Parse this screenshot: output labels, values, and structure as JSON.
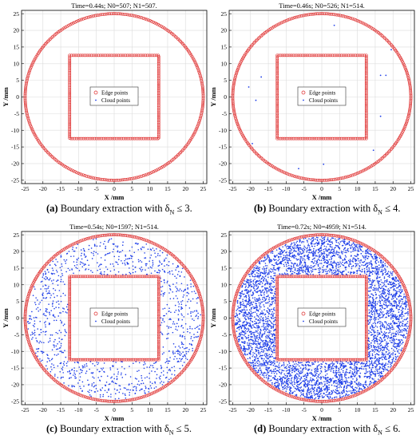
{
  "colors": {
    "edge": "#dd2222",
    "cloud": "#1f3fe8",
    "grid": "#dcdcdc",
    "axis": "#000000"
  },
  "chart_data": [
    {
      "type": "scatter",
      "panel": "a",
      "title": "Time=0.44s; N0=507; N1=507.",
      "xlabel": "X /mm",
      "ylabel": "Y /mm",
      "xlim": [
        -26,
        26
      ],
      "ylim": [
        -26,
        26
      ],
      "xticks": [
        -25,
        -20,
        -15,
        -10,
        -5,
        0,
        5,
        10,
        15,
        20,
        25
      ],
      "yticks": [
        -25,
        -20,
        -15,
        -10,
        -5,
        0,
        5,
        10,
        15,
        20,
        25
      ],
      "grid": true,
      "legend": {
        "position": "center",
        "entries": [
          "Edge points",
          "Cloud points"
        ]
      },
      "series": [
        {
          "name": "Edge points",
          "marker": "circle",
          "shape": "circle boundary R=25 + square boundary half-side 12.5",
          "circle_radius": 25,
          "square_half_side": 12.5,
          "count": 507
        },
        {
          "name": "Cloud points",
          "marker": "dot",
          "count": 0,
          "points": []
        }
      ],
      "caption_label": "(a)",
      "caption_text": " Boundary extraction with δ",
      "caption_sub": "N",
      "caption_rel": " ≤ 3."
    },
    {
      "type": "scatter",
      "panel": "b",
      "title": "Time=0.46s; N0=526; N1=514.",
      "xlabel": "X /mm",
      "ylabel": "Y /mm",
      "xlim": [
        -26,
        26
      ],
      "ylim": [
        -26,
        26
      ],
      "xticks": [
        -25,
        -20,
        -15,
        -10,
        -5,
        0,
        5,
        10,
        15,
        20,
        25
      ],
      "yticks": [
        -25,
        -20,
        -15,
        -10,
        -5,
        0,
        5,
        10,
        15,
        20,
        25
      ],
      "grid": true,
      "legend": {
        "position": "center",
        "entries": [
          "Edge points",
          "Cloud points"
        ]
      },
      "series": [
        {
          "name": "Edge points",
          "marker": "circle",
          "shape": "circle boundary R=25 + square boundary half-side 12.5",
          "circle_radius": 25,
          "square_half_side": 12.5,
          "count": 514
        },
        {
          "name": "Cloud points",
          "marker": "dot",
          "count": 12,
          "points": [
            [
              3.5,
              21.5
            ],
            [
              19.5,
              14.2
            ],
            [
              -20.5,
              3.0
            ],
            [
              -17.0,
              6.0
            ],
            [
              -18.5,
              -1.0
            ],
            [
              16.5,
              6.5
            ],
            [
              18.0,
              6.5
            ],
            [
              16.5,
              -5.8
            ],
            [
              -19.5,
              -14.0
            ],
            [
              14.5,
              -16.0
            ],
            [
              0.5,
              -20.2
            ],
            [
              -6.5,
              -21.5
            ]
          ]
        }
      ],
      "caption_label": "(b)",
      "caption_text": " Boundary extraction with δ",
      "caption_sub": "N",
      "caption_rel": " ≤ 4."
    },
    {
      "type": "scatter",
      "panel": "c",
      "title": "Time=0.54s; N0=1597; N1=514.",
      "xlabel": "X /mm",
      "ylabel": "Y /mm",
      "xlim": [
        -26,
        26
      ],
      "ylim": [
        -26,
        26
      ],
      "xticks": [
        -25,
        -20,
        -15,
        -10,
        -5,
        0,
        5,
        10,
        15,
        20,
        25
      ],
      "yticks": [
        -25,
        -20,
        -15,
        -10,
        -5,
        0,
        5,
        10,
        15,
        20,
        25
      ],
      "grid": true,
      "legend": {
        "position": "center",
        "entries": [
          "Edge points",
          "Cloud points"
        ]
      },
      "series": [
        {
          "name": "Edge points",
          "marker": "circle",
          "shape": "circle boundary R=25 + square boundary half-side 12.5",
          "circle_radius": 25,
          "square_half_side": 12.5,
          "count": 514
        },
        {
          "name": "Cloud points",
          "marker": "dot",
          "distribution": "uniform between square (half-side 12.5) and circle (R=25)",
          "count": 1083
        }
      ],
      "caption_label": "(c)",
      "caption_text": " Boundary extraction with δ",
      "caption_sub": "N",
      "caption_rel": " ≤ 5."
    },
    {
      "type": "scatter",
      "panel": "d",
      "title": "Time=0.72s; N0=4959; N1=514.",
      "xlabel": "X /mm",
      "ylabel": "Y /mm",
      "xlim": [
        -26,
        26
      ],
      "ylim": [
        -26,
        26
      ],
      "xticks": [
        -25,
        -20,
        -15,
        -10,
        -5,
        0,
        5,
        10,
        15,
        20,
        25
      ],
      "yticks": [
        -25,
        -20,
        -15,
        -10,
        -5,
        0,
        5,
        10,
        15,
        20,
        25
      ],
      "grid": true,
      "legend": {
        "position": "center",
        "entries": [
          "Edge points",
          "Cloud points"
        ]
      },
      "series": [
        {
          "name": "Edge points",
          "marker": "circle",
          "shape": "circle boundary R=25 + square boundary half-side 12.5",
          "circle_radius": 25,
          "square_half_side": 12.5,
          "count": 514
        },
        {
          "name": "Cloud points",
          "marker": "dot",
          "distribution": "uniform between square (half-side 12.5) and circle (R=25)",
          "count": 4445
        }
      ],
      "caption_label": "(d)",
      "caption_text": " Boundary extraction with δ",
      "caption_sub": "N",
      "caption_rel": " ≤ 6."
    }
  ]
}
